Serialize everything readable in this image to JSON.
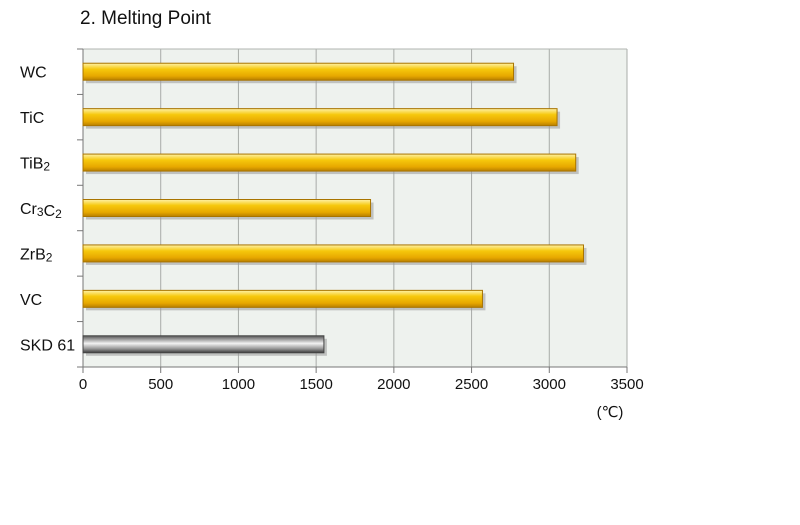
{
  "chart_data": {
    "type": "bar",
    "orientation": "horizontal",
    "title": "2. Melting Point",
    "unit": "(℃)",
    "categories": [
      {
        "text": "WC"
      },
      {
        "text": "TiC"
      },
      {
        "text": "TiB",
        "sub": "2"
      },
      {
        "text": "Cr",
        "sub": "3",
        "text2": "C",
        "sub2": "2"
      },
      {
        "text": "ZrB",
        "sub": "2"
      },
      {
        "text": "VC"
      },
      {
        "text": "SKD 61"
      }
    ],
    "values": [
      2770,
      3050,
      3170,
      1850,
      3220,
      2570,
      1550
    ],
    "bar_colors": [
      "#f2b600",
      "#f2b600",
      "#f2b600",
      "#f2b600",
      "#f2b600",
      "#f2b600",
      "#8c8c8c"
    ],
    "xlim": [
      0,
      3500
    ],
    "xticks": [
      0,
      500,
      1000,
      1500,
      2000,
      2500,
      3000,
      3500
    ],
    "grid": true,
    "plot_background": "#eef2ee"
  }
}
